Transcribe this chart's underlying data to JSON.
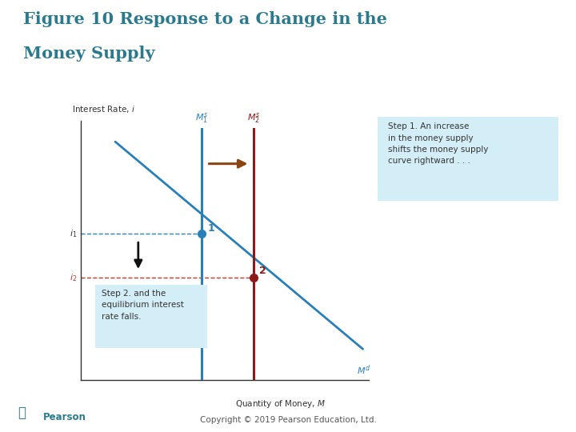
{
  "title_line1": "Figure 10 Response to a Change in the",
  "title_line2": "Money Supply",
  "title_color": "#2b7a8c",
  "title_fontsize": 15,
  "bg_color": "#ffffff",
  "plot_bg_color": "#ffffff",
  "axis_color": "#333333",
  "xlabel": "Quantity of Money, $\\it{M}$",
  "ylabel_text": "Interest Rate, $\\it{i}$",
  "x_range": [
    0,
    10
  ],
  "y_range": [
    0,
    10
  ],
  "ms1_x": 4.2,
  "ms2_x": 6.0,
  "md_x_start": 1.2,
  "md_x_end": 9.8,
  "md_y_start": 9.2,
  "md_y_end": 1.2,
  "ms1_color": "#2980b9",
  "ms2_color": "#8b1a1a",
  "md_color": "#2980b9",
  "i1_y": 5.65,
  "i2_y": 3.95,
  "point1_x": 4.2,
  "point1_y": 5.65,
  "point2_x": 6.0,
  "point2_y": 3.95,
  "point_color1": "#2980b9",
  "point_color2": "#8b1a1a",
  "dashed_color_i1": "#2980b9",
  "dashed_color_i2": "#c0392b",
  "step1_text": "Step 1. An increase\nin the money supply\nshifts the money supply\ncurve rightward . . .",
  "step2_text": "Step 2. and the\nequilibrium interest\nrate falls.",
  "box_color": "#d4eef8",
  "copyright": "Copyright © 2019 Pearson Education, Ltd.",
  "pearson_color": "#2b7a8c",
  "arrow_color": "#8b4513",
  "down_arrow_color": "#111111",
  "label_color_ms1": "#2980b9",
  "label_color_ms2": "#8b1a1a",
  "label_color_md": "#2980b9"
}
